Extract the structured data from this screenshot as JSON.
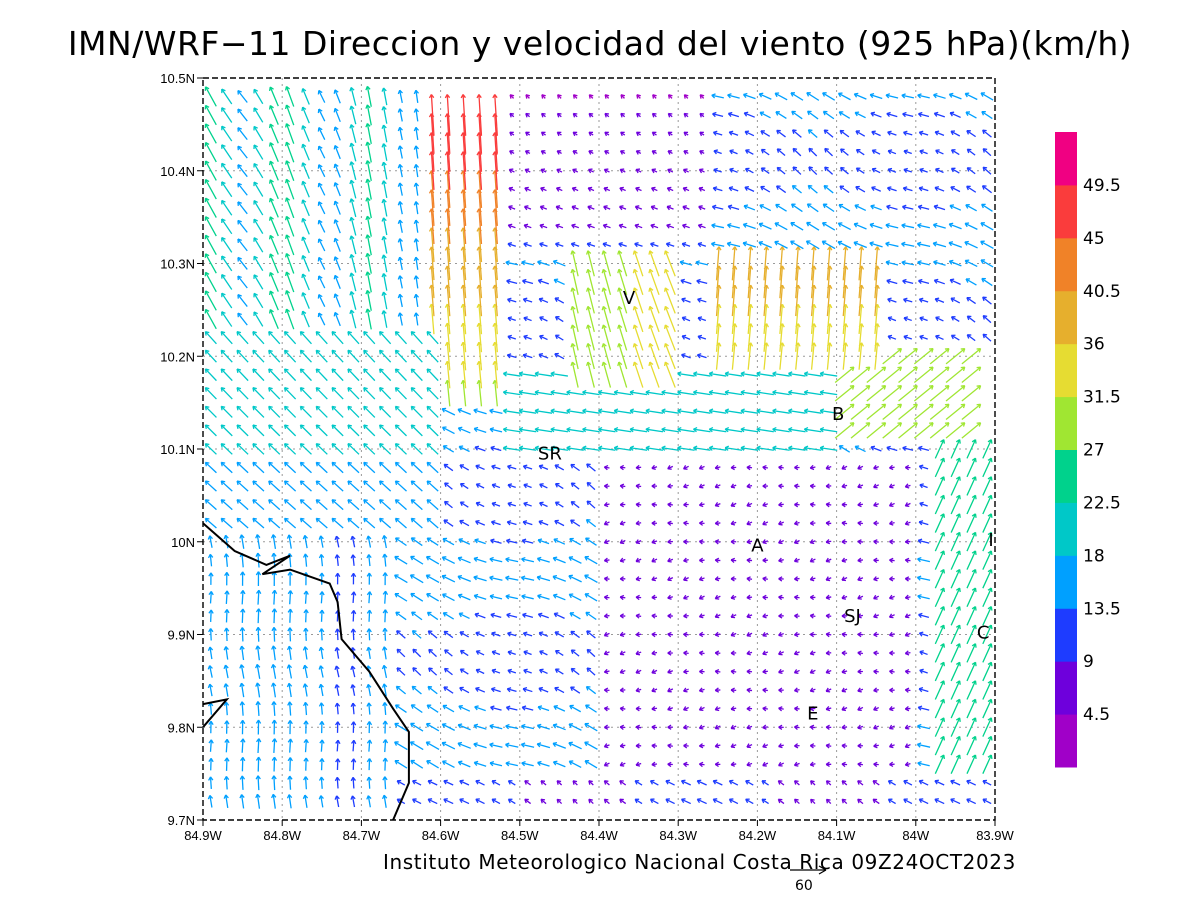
{
  "title": "IMN/WRF−11 Direccion y velocidad del viento (925 hPa)(km/h)",
  "credit": "Instituto Meteorologico Nacional Costa Rica 09Z24OCT2023",
  "map": {
    "lon_range": [
      -84.9,
      -83.9
    ],
    "lat_range": [
      9.7,
      10.5
    ],
    "x_ticks": [
      {
        "value": -84.9,
        "label": "84.9W"
      },
      {
        "value": -84.8,
        "label": "84.8W"
      },
      {
        "value": -84.7,
        "label": "84.7W"
      },
      {
        "value": -84.6,
        "label": "84.6W"
      },
      {
        "value": -84.5,
        "label": "84.5W"
      },
      {
        "value": -84.4,
        "label": "84.4W"
      },
      {
        "value": -84.3,
        "label": "84.3W"
      },
      {
        "value": -84.2,
        "label": "84.2W"
      },
      {
        "value": -84.1,
        "label": "84.1W"
      },
      {
        "value": -84.0,
        "label": "84W"
      },
      {
        "value": -83.9,
        "label": "83.9W"
      }
    ],
    "y_ticks": [
      {
        "value": 9.7,
        "label": "9.7N"
      },
      {
        "value": 9.8,
        "label": "9.8N"
      },
      {
        "value": 9.9,
        "label": "9.9N"
      },
      {
        "value": 10.0,
        "label": "10N"
      },
      {
        "value": 10.1,
        "label": "10.1N"
      },
      {
        "value": 10.2,
        "label": "10.2N"
      },
      {
        "value": 10.3,
        "label": "10.3N"
      },
      {
        "value": 10.4,
        "label": "10.4N"
      },
      {
        "value": 10.5,
        "label": "10.5N"
      }
    ],
    "grid": true,
    "cities": [
      {
        "label": "V",
        "lon": -84.362,
        "lat": 10.263
      },
      {
        "label": "B",
        "lon": -84.098,
        "lat": 10.138
      },
      {
        "label": "SR",
        "lon": -84.462,
        "lat": 10.095
      },
      {
        "label": "A",
        "lon": -84.2,
        "lat": 9.996
      },
      {
        "label": "SJ",
        "lon": -84.08,
        "lat": 9.92
      },
      {
        "label": "C",
        "lon": -83.915,
        "lat": 9.902
      },
      {
        "label": "E",
        "lon": -84.13,
        "lat": 9.815
      },
      {
        "label": "I",
        "lon": -83.905,
        "lat": 10.002
      }
    ],
    "coastline": [
      [
        -84.9,
        10.02
      ],
      [
        -84.86,
        9.99
      ],
      [
        -84.82,
        9.975
      ],
      [
        -84.79,
        9.985
      ],
      [
        -84.825,
        9.965
      ],
      [
        -84.79,
        9.97
      ],
      [
        -84.74,
        9.955
      ],
      [
        -84.73,
        9.935
      ],
      [
        -84.725,
        9.895
      ],
      [
        -84.69,
        9.86
      ],
      [
        -84.66,
        9.82
      ],
      [
        -84.64,
        9.795
      ],
      [
        -84.64,
        9.74
      ],
      [
        -84.66,
        9.7
      ]
    ],
    "coastline_inlet": [
      [
        -84.9,
        9.8
      ],
      [
        -84.87,
        9.83
      ],
      [
        -84.9,
        9.825
      ]
    ]
  },
  "wind_reference": {
    "label": "60",
    "speed": 60
  },
  "colorbar": {
    "levels": [
      "4.5",
      "9",
      "13.5",
      "18",
      "22.5",
      "27",
      "31.5",
      "36",
      "40.5",
      "45",
      "49.5"
    ],
    "colors": [
      "#a000c8",
      "#6e00dc",
      "#1e3cff",
      "#00a0ff",
      "#00c8c8",
      "#00d28c",
      "#a0e632",
      "#e6dc32",
      "#e6af2d",
      "#f08228",
      "#fa3c3c",
      "#f00082"
    ]
  },
  "wind_field": {
    "grid_spacing_deg": 0.05,
    "units": "km/h",
    "regimes": [
      {
        "area": "southwest lowlands",
        "from": "S",
        "speed_kmh": 16
      },
      {
        "area": "northwest",
        "from": "SE",
        "speed_kmh": 22
      },
      {
        "area": "north center jet",
        "from": "S",
        "speed_kmh": 42
      },
      {
        "area": "east of Volcan",
        "from": "S",
        "speed_kmh": 40
      },
      {
        "area": "central valley",
        "from": "E",
        "speed_kmh": 6
      },
      {
        "area": "southeast",
        "from": "SW",
        "speed_kmh": 28
      }
    ]
  }
}
